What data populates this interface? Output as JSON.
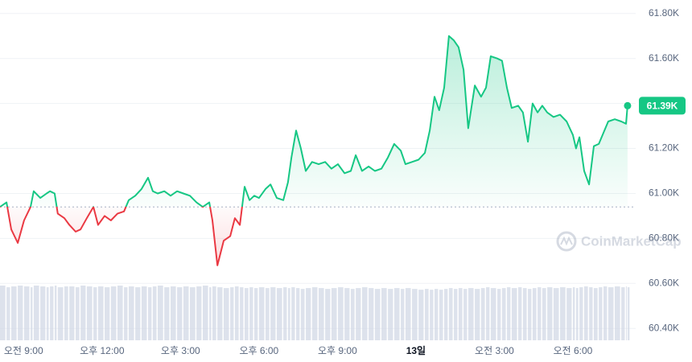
{
  "chart_data": {
    "type": "line",
    "x": [
      8.1,
      8.35,
      8.53,
      8.78,
      9.02,
      9.27,
      9.39,
      9.64,
      9.88,
      10.01,
      10.19,
      10.31,
      10.56,
      10.75,
      10.99,
      11.18,
      11.42,
      11.67,
      11.85,
      12.1,
      12.34,
      12.59,
      12.84,
      13.02,
      13.27,
      13.51,
      13.76,
      13.94,
      14.13,
      14.38,
      14.62,
      14.87,
      15.11,
      15.36,
      15.61,
      15.85,
      16.1,
      16.22,
      16.41,
      16.65,
      16.9,
      17.08,
      17.27,
      17.45,
      17.64,
      17.82,
      18.0,
      18.25,
      18.44,
      18.68,
      18.93,
      19.11,
      19.24,
      19.42,
      19.6,
      19.79,
      20.03,
      20.28,
      20.53,
      20.77,
      21.02,
      21.27,
      21.51,
      21.7,
      21.94,
      22.19,
      22.43,
      22.68,
      22.93,
      23.17,
      23.42,
      23.6,
      23.85,
      24.1,
      24.34,
      24.53,
      24.71,
      24.89,
      25.08,
      25.26,
      25.45,
      25.63,
      25.82,
      26.0,
      26.25,
      26.49,
      26.68,
      26.86,
      27.11,
      27.29,
      27.48,
      27.66,
      27.91,
      28.09,
      28.28,
      28.46,
      28.65,
      28.83,
      29.02,
      29.26,
      29.51,
      29.76,
      30.0,
      30.12,
      30.25,
      30.43,
      30.62,
      30.8,
      30.99,
      31.17,
      31.35,
      31.6,
      31.85,
      32.03,
      32.09
    ],
    "values": [
      60940,
      60960,
      60840,
      60780,
      60880,
      60940,
      61010,
      60980,
      61000,
      61010,
      61000,
      60910,
      60890,
      60860,
      60830,
      60840,
      60890,
      60940,
      60860,
      60900,
      60880,
      60910,
      60920,
      60970,
      60990,
      61020,
      61070,
      61010,
      61000,
      61010,
      60990,
      61010,
      61000,
      60990,
      60960,
      60940,
      60960,
      60880,
      60680,
      60790,
      60810,
      60890,
      60860,
      61030,
      60970,
      60990,
      60980,
      61020,
      61040,
      60980,
      60970,
      61050,
      61160,
      61280,
      61200,
      61100,
      61140,
      61130,
      61140,
      61110,
      61130,
      61090,
      61100,
      61170,
      61100,
      61120,
      61100,
      61110,
      61160,
      61220,
      61190,
      61130,
      61140,
      61150,
      61180,
      61280,
      61430,
      61370,
      61470,
      61700,
      61680,
      61650,
      61550,
      61290,
      61480,
      61430,
      61470,
      61610,
      61600,
      61590,
      61470,
      61380,
      61390,
      61360,
      61230,
      61400,
      61360,
      61390,
      61360,
      61340,
      61350,
      61320,
      61260,
      61200,
      61250,
      61100,
      61040,
      61210,
      61220,
      61270,
      61320,
      61330,
      61320,
      61310,
      61390
    ],
    "volume": [
      66,
      64,
      65,
      66,
      65,
      64,
      66,
      65,
      64,
      65,
      66,
      64,
      65,
      65,
      64,
      66,
      65,
      64,
      65,
      64,
      65,
      66,
      64,
      65,
      64,
      65,
      64,
      65,
      66,
      64,
      65,
      64,
      65,
      64,
      65,
      66,
      64,
      65,
      64,
      63,
      64,
      65,
      64,
      63,
      64,
      63,
      64,
      63,
      64,
      63,
      64,
      63,
      64,
      63,
      62,
      63,
      64,
      63,
      62,
      63,
      64,
      63,
      62,
      63,
      64,
      63,
      62,
      63,
      62,
      63,
      62,
      63,
      62,
      61,
      62,
      61,
      62,
      61,
      62,
      63,
      62,
      63,
      62,
      63,
      62,
      63,
      64,
      63,
      62,
      63,
      64,
      63,
      64,
      63,
      62,
      63,
      64,
      63,
      64,
      63,
      64,
      63,
      64,
      63,
      64,
      65,
      64,
      63,
      64,
      65,
      64,
      65,
      64,
      65,
      64
    ],
    "baseline": 60940,
    "price_label": "61.39K",
    "color_up": "#16c784",
    "color_down": "#ea3943",
    "xlim": [
      8.1,
      32.4
    ],
    "xticks": [
      {
        "value": 9,
        "label": "오전 9:00"
      },
      {
        "value": 12,
        "label": "오후 12:00"
      },
      {
        "value": 15,
        "label": "오후 3:00"
      },
      {
        "value": 18,
        "label": "오후 6:00"
      },
      {
        "value": 21,
        "label": "오후 9:00"
      },
      {
        "value": 24,
        "label": "13일"
      },
      {
        "value": 27,
        "label": "오전 3:00"
      },
      {
        "value": 30,
        "label": "오전 6:00"
      }
    ],
    "ylim": [
      60340,
      61860
    ],
    "yticks": [
      {
        "value": 60400,
        "label": "60.40K"
      },
      {
        "value": 60600,
        "label": "60.60K"
      },
      {
        "value": 60800,
        "label": "60.80K"
      },
      {
        "value": 61000,
        "label": "61.00K"
      },
      {
        "value": 61200,
        "label": "61.20K"
      },
      {
        "value": 61400,
        "label": "61.40K"
      },
      {
        "value": 61600,
        "label": "61.60K"
      },
      {
        "value": 61800,
        "label": "61.80K"
      }
    ],
    "grid": true,
    "watermark": "CoinMarketCap"
  }
}
